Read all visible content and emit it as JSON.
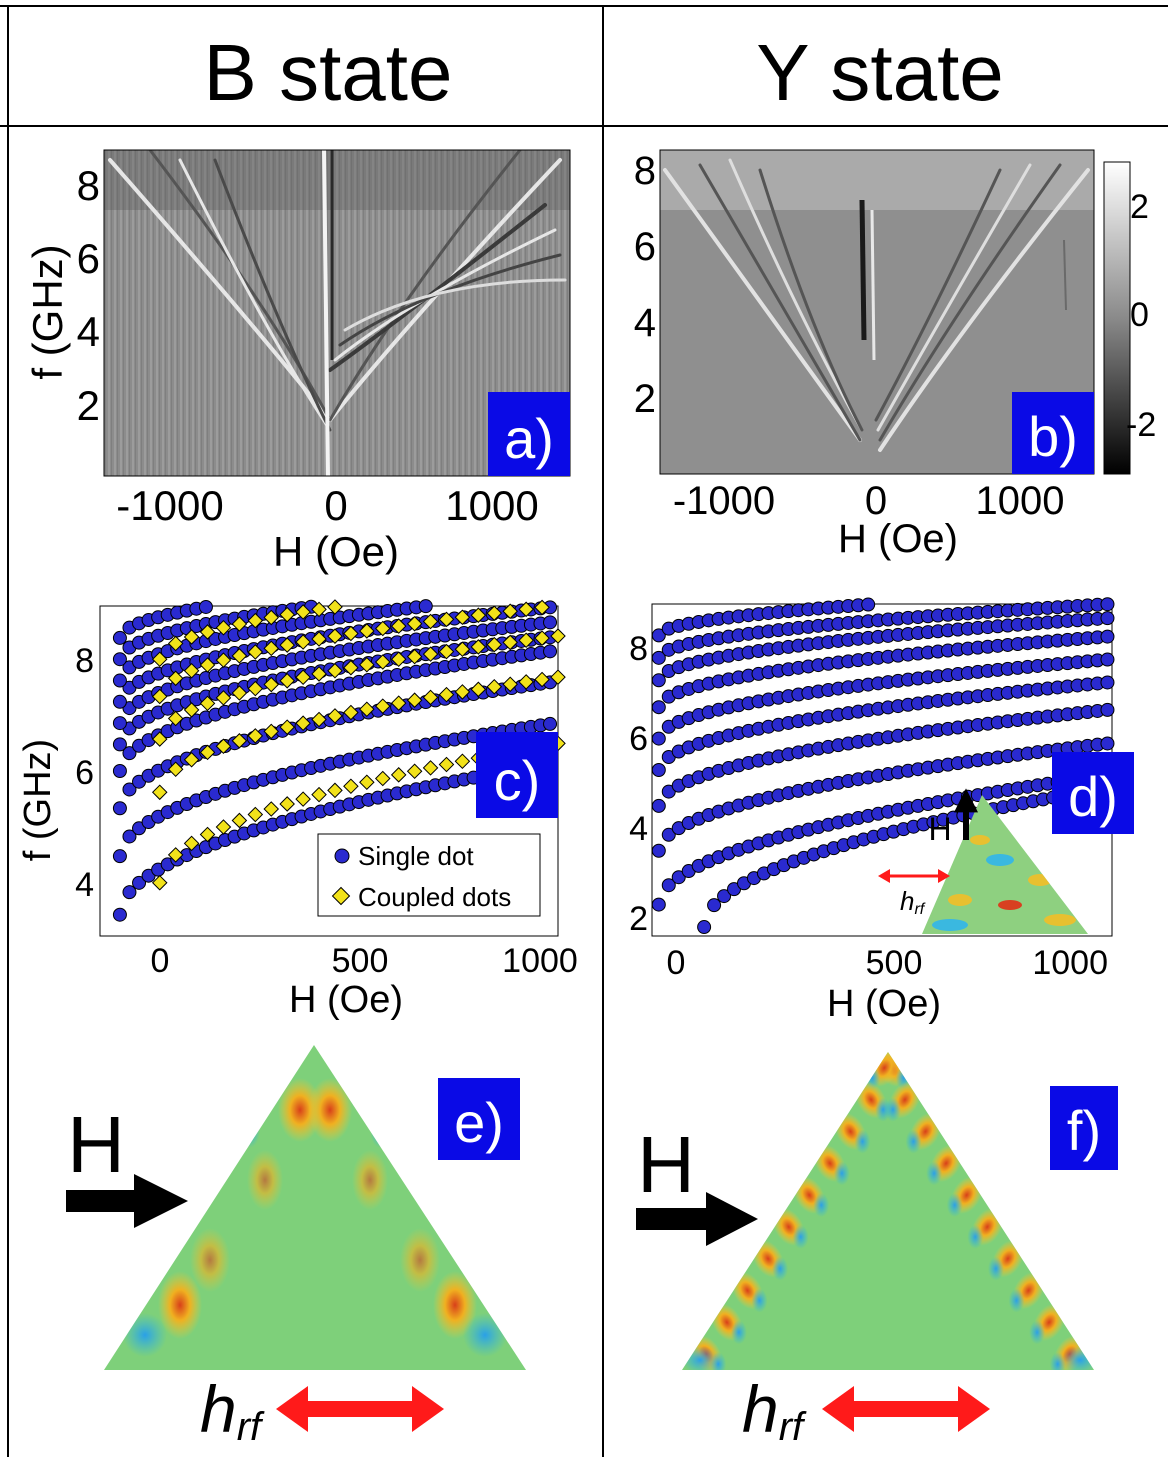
{
  "headers": {
    "left": "B state",
    "right": "Y state"
  },
  "colors": {
    "panel_label_bg": "#0a0ae6",
    "panel_label_fg": "#ffffff",
    "single_dot": "#2a2ad0",
    "coupled_dots": "#f2e21a",
    "arrow_red": "#ff1a1a"
  },
  "panel_a": {
    "label": "a)",
    "chart_data": {
      "type": "heatmap",
      "xlabel": "H (Oe)",
      "ylabel": "f (GHz)",
      "xticks": [
        "-1000",
        "0",
        "1000"
      ],
      "yticks": [
        "2",
        "4",
        "6",
        "8"
      ],
      "xlim": [
        -1500,
        1500
      ],
      "ylim": [
        0,
        9
      ]
    }
  },
  "panel_b": {
    "label": "b)",
    "chart_data": {
      "type": "heatmap",
      "xlabel": "H (Oe)",
      "ylabel": "",
      "xticks": [
        "-1000",
        "0",
        "1000"
      ],
      "yticks": [
        "2",
        "4",
        "6",
        "8"
      ],
      "xlim": [
        -1500,
        1500
      ],
      "ylim": [
        0,
        8.5
      ],
      "colorbar": {
        "ticks": [
          "2",
          "0",
          "-2"
        ],
        "range": [
          -2.8,
          2.8
        ]
      }
    }
  },
  "panel_c": {
    "label": "c)",
    "chart_data": {
      "type": "scatter",
      "xlabel": "H (Oe)",
      "ylabel": "f (GHz)",
      "xticks": [
        "0",
        "500",
        "1000"
      ],
      "yticks": [
        "4",
        "6",
        "8"
      ],
      "xlim": [
        -150,
        1000
      ],
      "ylim": [
        2.8,
        9
      ],
      "legend": [
        "Single dot",
        "Coupled dots"
      ],
      "legend_position": "bottom-right",
      "series": [
        {
          "name": "Single dot",
          "branches": [
            {
              "x0": -100,
              "f0": 3.2,
              "slope": 0.0048
            },
            {
              "x0": -100,
              "f0": 4.3,
              "slope": 0.0042
            },
            {
              "x0": -100,
              "f0": 5.2,
              "slope": 0.004
            },
            {
              "x0": -100,
              "f0": 5.9,
              "slope": 0.0038
            },
            {
              "x0": -100,
              "f0": 6.4,
              "slope": 0.0034
            },
            {
              "x0": -100,
              "f0": 6.8,
              "slope": 0.0032
            },
            {
              "x0": -100,
              "f0": 7.2,
              "slope": 0.003
            },
            {
              "x0": -100,
              "f0": 7.6,
              "slope": 0.0028
            },
            {
              "x0": -100,
              "f0": 8.0,
              "slope": 0.0025
            },
            {
              "x0": -100,
              "f0": 8.4,
              "slope": 0.0022
            }
          ]
        },
        {
          "name": "Coupled dots",
          "branches": [
            {
              "x0": 0,
              "f0": 3.8,
              "slope": 0.0046
            },
            {
              "x0": 0,
              "f0": 5.5,
              "slope": 0.0038
            },
            {
              "x0": 0,
              "f0": 6.5,
              "slope": 0.0034
            },
            {
              "x0": 0,
              "f0": 7.3,
              "slope": 0.003
            },
            {
              "x0": 0,
              "f0": 8.0,
              "slope": 0.0026
            }
          ]
        }
      ]
    }
  },
  "panel_d": {
    "label": "d)",
    "chart_data": {
      "type": "scatter",
      "xlabel": "H (Oe)",
      "ylabel": "",
      "xticks": [
        "0",
        "500",
        "1000"
      ],
      "yticks": [
        "2",
        "4",
        "6",
        "8"
      ],
      "xlim": [
        -15,
        1000
      ],
      "ylim": [
        1.6,
        9
      ],
      "series": [
        {
          "name": "",
          "branches": [
            {
              "x0": 100,
              "f0": 1.8,
              "slope": 0.0052
            },
            {
              "x0": 0,
              "f0": 2.3,
              "slope": 0.0046
            },
            {
              "x0": 0,
              "f0": 3.5,
              "slope": 0.0038
            },
            {
              "x0": 0,
              "f0": 4.5,
              "slope": 0.0034
            },
            {
              "x0": 0,
              "f0": 5.3,
              "slope": 0.0031
            },
            {
              "x0": 0,
              "f0": 6.0,
              "slope": 0.0028
            },
            {
              "x0": 0,
              "f0": 6.7,
              "slope": 0.0025
            },
            {
              "x0": 0,
              "f0": 7.3,
              "slope": 0.0022
            },
            {
              "x0": 0,
              "f0": 7.8,
              "slope": 0.0019
            },
            {
              "x0": 0,
              "f0": 8.3,
              "slope": 0.0016
            }
          ]
        }
      ]
    },
    "inset_H": "H",
    "inset_hrf": "h",
    "inset_hrf_sub": "rf"
  },
  "panel_e": {
    "label": "e)",
    "H": "H",
    "hrf": "h",
    "hrf_sub": "rf"
  },
  "panel_f": {
    "label": "f)",
    "H": "H",
    "hrf": "h",
    "hrf_sub": "rf"
  }
}
